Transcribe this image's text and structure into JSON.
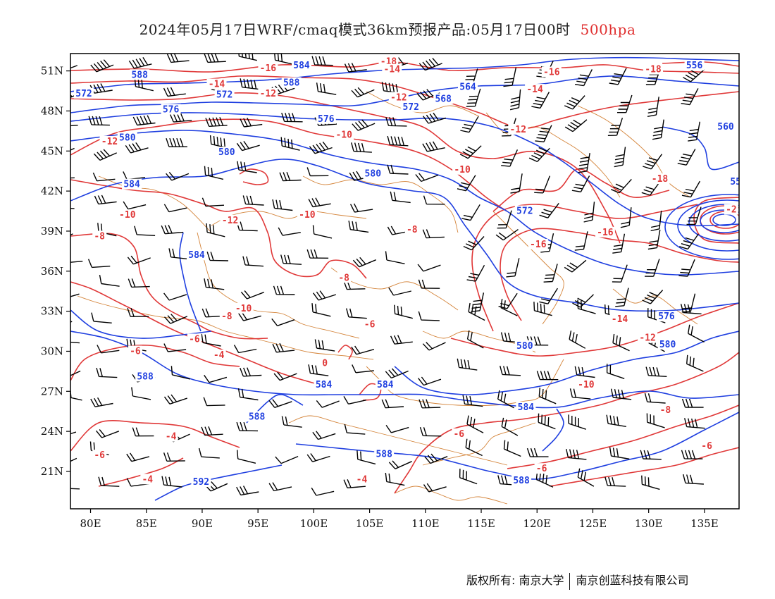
{
  "title": {
    "text": "2024年05月17日WRF/cmaq模式36km预报产品:05月17日00时",
    "level": "500hpa"
  },
  "axes": {
    "lon_labels": [
      "80E",
      "85E",
      "90E",
      "95E",
      "100E",
      "105E",
      "110E",
      "115E",
      "120E",
      "125E",
      "130E",
      "135E"
    ],
    "lat_labels": [
      "51N",
      "48N",
      "45N",
      "42N",
      "39N",
      "36N",
      "33N",
      "30N",
      "27N",
      "24N",
      "21N"
    ]
  },
  "colors": {
    "height": "#1f3fe0",
    "temperature": "#e03838",
    "borders": "#d4843a",
    "wind": "#000000",
    "level_text": "#e03030"
  },
  "map": {
    "height_labels": [
      {
        "text": "588",
        "lon": 84.4,
        "lat": 50.7
      },
      {
        "text": "584",
        "lon": 98.9,
        "lat": 51.4
      },
      {
        "text": "588",
        "lon": 98.0,
        "lat": 50.1
      },
      {
        "text": "564",
        "lon": 113.8,
        "lat": 49.8
      },
      {
        "text": "556",
        "lon": 134.1,
        "lat": 51.4
      },
      {
        "text": "572",
        "lon": 79.4,
        "lat": 49.3
      },
      {
        "text": "572",
        "lon": 92.0,
        "lat": 49.2
      },
      {
        "text": "568",
        "lon": 111.6,
        "lat": 48.9
      },
      {
        "text": "572",
        "lon": 108.7,
        "lat": 48.3
      },
      {
        "text": "576",
        "lon": 87.2,
        "lat": 48.1
      },
      {
        "text": "576",
        "lon": 101.1,
        "lat": 47.4
      },
      {
        "text": "580",
        "lon": 83.3,
        "lat": 46.0
      },
      {
        "text": "560",
        "lon": 136.9,
        "lat": 46.8
      },
      {
        "text": "580",
        "lon": 92.2,
        "lat": 44.9
      },
      {
        "text": "580",
        "lon": 105.3,
        "lat": 43.3
      },
      {
        "text": "584",
        "lon": 83.7,
        "lat": 42.5
      },
      {
        "text": "55",
        "lon": 137.8,
        "lat": 42.7
      },
      {
        "text": "572",
        "lon": 118.9,
        "lat": 40.5
      },
      {
        "text": "584",
        "lon": 89.5,
        "lat": 37.2
      },
      {
        "text": "576",
        "lon": 131.6,
        "lat": 32.6
      },
      {
        "text": "580",
        "lon": 118.9,
        "lat": 30.4
      },
      {
        "text": "580",
        "lon": 131.7,
        "lat": 30.5
      },
      {
        "text": "588",
        "lon": 84.9,
        "lat": 28.1
      },
      {
        "text": "584",
        "lon": 100.9,
        "lat": 27.5
      },
      {
        "text": "584",
        "lon": 106.4,
        "lat": 27.5
      },
      {
        "text": "584",
        "lon": 119.0,
        "lat": 25.8
      },
      {
        "text": "588",
        "lon": 94.9,
        "lat": 25.1
      },
      {
        "text": "588",
        "lon": 106.3,
        "lat": 22.3
      },
      {
        "text": "588",
        "lon": 118.6,
        "lat": 20.3
      },
      {
        "text": "592",
        "lon": 89.9,
        "lat": 20.2
      }
    ],
    "temp_labels": [
      {
        "text": "-18",
        "lon": 106.7,
        "lat": 51.7
      },
      {
        "text": "-16",
        "lon": 95.9,
        "lat": 51.2
      },
      {
        "text": "-14",
        "lon": 107.0,
        "lat": 51.1
      },
      {
        "text": "-16",
        "lon": 121.3,
        "lat": 50.9
      },
      {
        "text": "-18",
        "lon": 130.4,
        "lat": 51.1
      },
      {
        "text": "-14",
        "lon": 91.3,
        "lat": 50.0
      },
      {
        "text": "-12",
        "lon": 95.9,
        "lat": 49.3
      },
      {
        "text": "-14",
        "lon": 119.8,
        "lat": 49.6
      },
      {
        "text": "-12",
        "lon": 107.6,
        "lat": 49.0
      },
      {
        "text": "-12",
        "lon": 118.3,
        "lat": 46.6
      },
      {
        "text": "-10",
        "lon": 102.7,
        "lat": 46.2
      },
      {
        "text": "-12",
        "lon": 81.7,
        "lat": 45.7
      },
      {
        "text": "-10",
        "lon": 113.3,
        "lat": 43.6
      },
      {
        "text": "-18",
        "lon": 131.0,
        "lat": 42.9
      },
      {
        "text": "-2",
        "lon": 137.4,
        "lat": 40.6
      },
      {
        "text": "-10",
        "lon": 83.3,
        "lat": 40.2
      },
      {
        "text": "-10",
        "lon": 99.4,
        "lat": 40.2
      },
      {
        "text": "-12",
        "lon": 92.5,
        "lat": 39.8
      },
      {
        "text": "-8",
        "lon": 80.8,
        "lat": 38.6
      },
      {
        "text": "-8",
        "lon": 108.8,
        "lat": 39.1
      },
      {
        "text": "-16",
        "lon": 126.1,
        "lat": 38.9
      },
      {
        "text": "-16",
        "lon": 120.1,
        "lat": 38.0
      },
      {
        "text": "-8",
        "lon": 102.7,
        "lat": 35.5
      },
      {
        "text": "-10",
        "lon": 93.7,
        "lat": 33.2
      },
      {
        "text": "-8",
        "lon": 92.2,
        "lat": 32.6
      },
      {
        "text": "-14",
        "lon": 127.4,
        "lat": 32.4
      },
      {
        "text": "-6",
        "lon": 105.0,
        "lat": 32.0
      },
      {
        "text": "-6",
        "lon": 89.3,
        "lat": 30.9
      },
      {
        "text": "-12",
        "lon": 129.9,
        "lat": 31.0
      },
      {
        "text": "-6",
        "lon": 84.0,
        "lat": 30.0
      },
      {
        "text": "-4",
        "lon": 91.5,
        "lat": 29.7
      },
      {
        "text": "0",
        "lon": 101.0,
        "lat": 29.1
      },
      {
        "text": "-10",
        "lon": 124.4,
        "lat": 27.5
      },
      {
        "text": "-8",
        "lon": 131.5,
        "lat": 25.6
      },
      {
        "text": "-4",
        "lon": 87.2,
        "lat": 23.6
      },
      {
        "text": "-6",
        "lon": 113.0,
        "lat": 23.8
      },
      {
        "text": "-6",
        "lon": 80.8,
        "lat": 22.2
      },
      {
        "text": "-6",
        "lon": 135.2,
        "lat": 22.9
      },
      {
        "text": "-6",
        "lon": 120.4,
        "lat": 21.2
      },
      {
        "text": "-4",
        "lon": 85.1,
        "lat": 20.4
      },
      {
        "text": "-4",
        "lon": 104.3,
        "lat": 20.4
      }
    ]
  },
  "footer": {
    "left": "版权所有: 南京大学",
    "right": "南京创蓝科技有限公司"
  }
}
